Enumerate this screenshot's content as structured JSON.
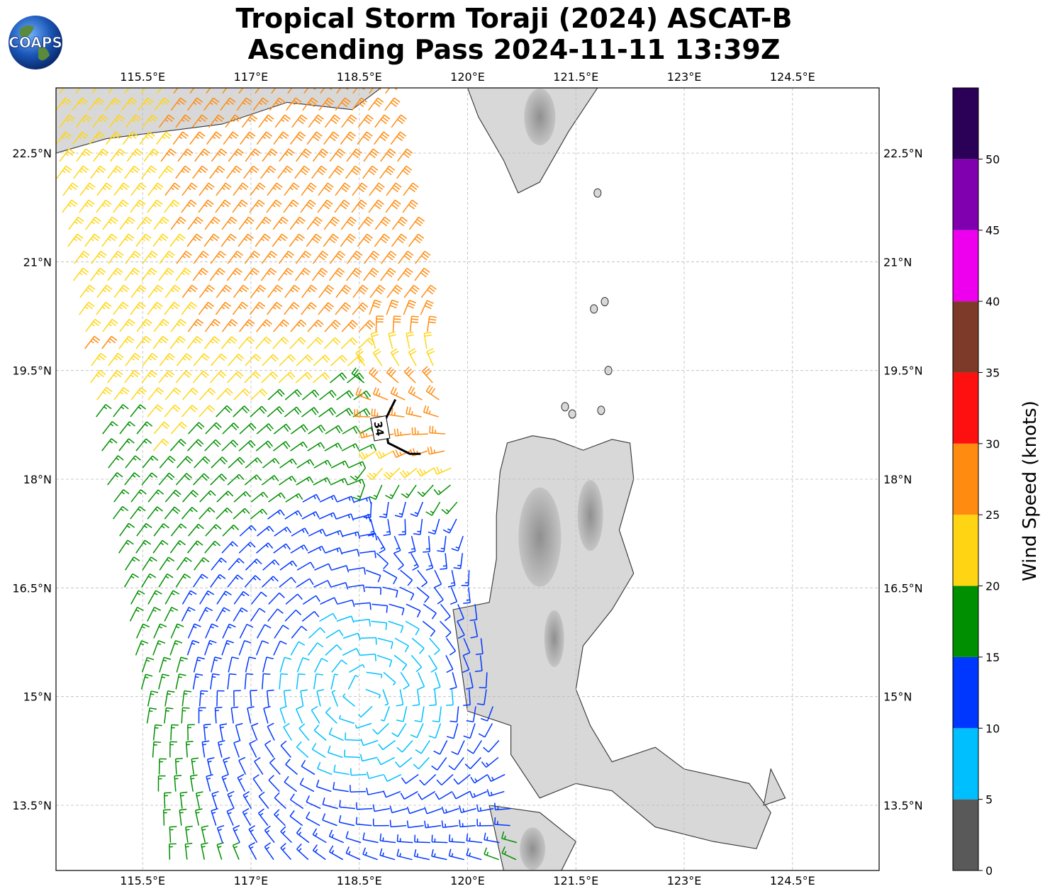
{
  "header": {
    "title_line1": "Tropical Storm Toraji (2024) ASCAT-B",
    "title_line2": "Ascending Pass 2024-11-11 13:39Z",
    "logo_text": "COAPS"
  },
  "map": {
    "lon_ticks": [
      "115.5°E",
      "117°E",
      "118.5°E",
      "120°E",
      "121.5°E",
      "123°E",
      "124.5°E"
    ],
    "lat_ticks": [
      "22.5°N",
      "21°N",
      "19.5°N",
      "18°N",
      "16.5°N",
      "15°N",
      "13.5°N"
    ],
    "lon_range": [
      114.3,
      125.7
    ],
    "lat_range": [
      12.6,
      23.4
    ],
    "gridlines": true,
    "contour_label": "34",
    "land_color": "#d8d8d8",
    "coast_color": "#333333"
  },
  "colorbar": {
    "label": "Wind Speed (knots)",
    "ticks": [
      "0",
      "5",
      "10",
      "15",
      "20",
      "25",
      "30",
      "35",
      "40",
      "45",
      "50"
    ],
    "bins": [
      {
        "min": 0,
        "max": 5,
        "color": "#595959"
      },
      {
        "min": 5,
        "max": 10,
        "color": "#00bfff"
      },
      {
        "min": 10,
        "max": 15,
        "color": "#0037ff"
      },
      {
        "min": 15,
        "max": 20,
        "color": "#008f00"
      },
      {
        "min": 20,
        "max": 25,
        "color": "#ffd513"
      },
      {
        "min": 25,
        "max": 30,
        "color": "#ff8c10"
      },
      {
        "min": 30,
        "max": 35,
        "color": "#ff1010"
      },
      {
        "min": 35,
        "max": 40,
        "color": "#7d3a28"
      },
      {
        "min": 40,
        "max": 45,
        "color": "#ee00ee"
      },
      {
        "min": 45,
        "max": 50,
        "color": "#8000b0"
      },
      {
        "min": 50,
        "max": 55,
        "color": "#2b0057"
      }
    ]
  },
  "storm": {
    "center_lon": 118.55,
    "center_lat": 15.0
  }
}
